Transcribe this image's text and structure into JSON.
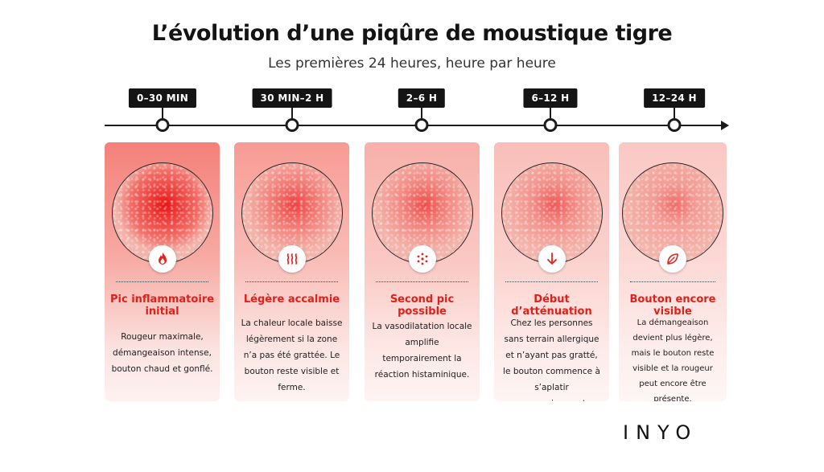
{
  "title": "L’évolution d’une piqûre de moustique tigre",
  "subtitle": "Les premières 24 heures, heure par heure",
  "brand": "INYO",
  "stages": [
    {
      "time": "0–30 MIN",
      "icon": "flame-icon",
      "title": "Pic inflammatoire initial",
      "description": "Rougeur maximale, démangeaison intense, bouton chaud et gonflé.",
      "redness": 1.0
    },
    {
      "time": "30 MIN–2 H",
      "icon": "heat-waves-icon",
      "title": "Légère accalmie",
      "description": "La chaleur locale baisse légèrement si la zone n’a pas été grattée. Le bouton reste visible et ferme.",
      "redness": 0.6
    },
    {
      "time": "2–6 H",
      "icon": "dots-burst-icon",
      "title": "Second pic possible",
      "description": "La vasodilatation locale amplifie temporairement la réaction histaminique.",
      "redness": 0.5
    },
    {
      "time": "6–12 H",
      "icon": "arrow-down-icon",
      "title": "Début d’atténuation",
      "description": "Chez les personnes sans terrain allergique et n’ayant pas gratté, le bouton commence à s’aplatir progressivement.",
      "redness": 0.4
    },
    {
      "time": "12–24 H",
      "icon": "leaf-icon",
      "title": "Bouton encore visible",
      "description": "La démangeaison devient plus légère, mais le bouton reste visible et la rougeur peut encore être présente.",
      "redness": 0.25
    }
  ]
}
